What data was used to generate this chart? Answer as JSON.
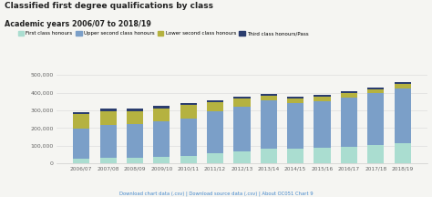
{
  "title": "Classified first degree qualifications by class",
  "subtitle": "Academic years 2006/07 to 2018/19",
  "years": [
    "2006/07",
    "2007/08",
    "2008/09",
    "2009/10",
    "2010/11",
    "2011/12",
    "2012/13",
    "2013/14",
    "2014/15",
    "2015/16",
    "2016/17",
    "2017/18",
    "2018/19"
  ],
  "first_class": [
    25000,
    30000,
    32000,
    35000,
    41000,
    56000,
    67000,
    83000,
    82000,
    90000,
    94000,
    103000,
    116000
  ],
  "upper_second": [
    170000,
    190000,
    190000,
    205000,
    215000,
    240000,
    254000,
    273000,
    258000,
    262000,
    278000,
    293000,
    308000
  ],
  "lower_second": [
    82000,
    75000,
    74000,
    72000,
    73000,
    50000,
    44000,
    27000,
    27000,
    26000,
    26000,
    24000,
    25000
  ],
  "third_class": [
    12000,
    14000,
    12000,
    12000,
    14000,
    10000,
    10000,
    9000,
    8000,
    8000,
    8000,
    7000,
    8000
  ],
  "colors": {
    "first_class": "#aaddd0",
    "upper_second": "#7b9fc8",
    "lower_second": "#b5b240",
    "third_class": "#2b3d6e"
  },
  "legend_labels": [
    "First class honours",
    "Upper second class honours",
    "Lower second class honours",
    "Third class honours/Pass"
  ],
  "ylim": [
    0,
    500000
  ],
  "yticks": [
    0,
    100000,
    200000,
    300000,
    400000,
    500000
  ],
  "ytick_labels": [
    "0",
    "100,000",
    "200,000",
    "300,000",
    "400,000",
    "500,000"
  ],
  "footer_text": "Download chart data (.csv) | Download source data (.csv) | About OC051 Chart 9",
  "bg_color": "#f5f5f2",
  "plot_bg": "#f5f5f2"
}
